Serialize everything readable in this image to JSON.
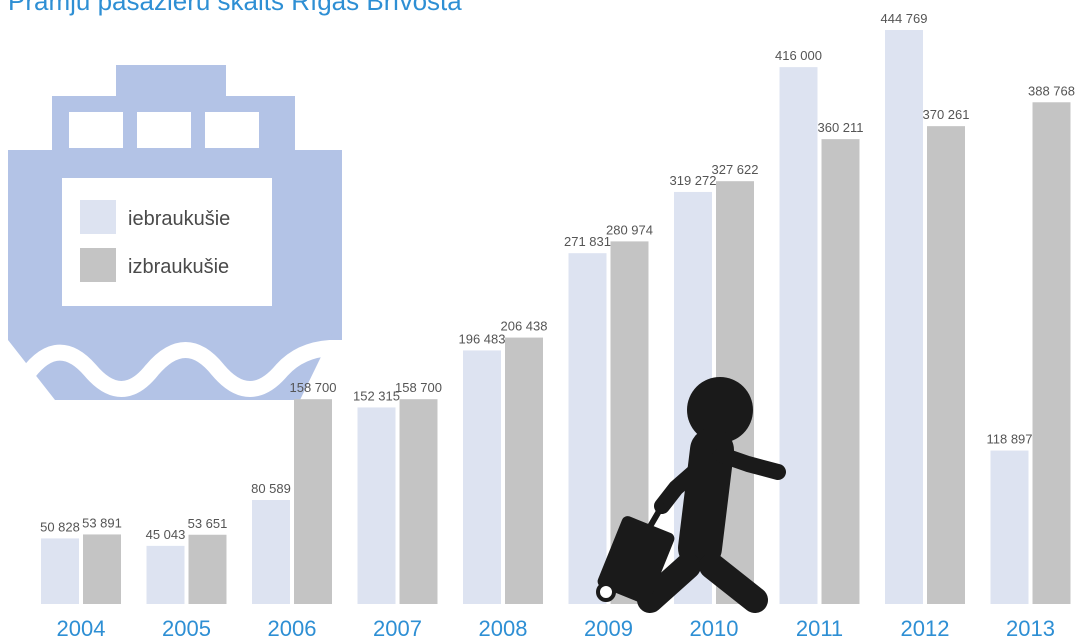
{
  "chart_data": {
    "type": "bar",
    "title": "Prāmju pasažieru skaits Rīgas Brīvostā",
    "xlabel": "",
    "ylabel": "",
    "categories": [
      "2004",
      "2005",
      "2006",
      "2007",
      "2008",
      "2009",
      "2010",
      "2011",
      "2012",
      "2013"
    ],
    "series": [
      {
        "name": "iebraukušie",
        "color": "#dde3f1",
        "values": [
          50828,
          45043,
          80589,
          152315,
          196483,
          271831,
          319272,
          416000,
          444769,
          118897
        ],
        "labels": [
          "50 828",
          "45 043",
          "80 589",
          "152 315",
          "196 483",
          "271 831",
          "319 272",
          "416 000",
          "444 769",
          "118 897"
        ]
      },
      {
        "name": "izbraukušie",
        "color": "#c4c4c4",
        "values": [
          53891,
          53651,
          158700,
          158700,
          206438,
          280974,
          327622,
          360211,
          370261,
          388768
        ],
        "labels": [
          "53 891",
          "53 651",
          "158 700",
          "158 700",
          "206 438",
          "280 974",
          "327 622",
          "360 211",
          "370 261",
          "388 768"
        ]
      }
    ],
    "ylim": [
      0,
      460000
    ],
    "grid": false,
    "legend_position": "left, inside ship icon",
    "decorations": [
      "ship-icon",
      "traveler-with-suitcase-icon"
    ]
  }
}
